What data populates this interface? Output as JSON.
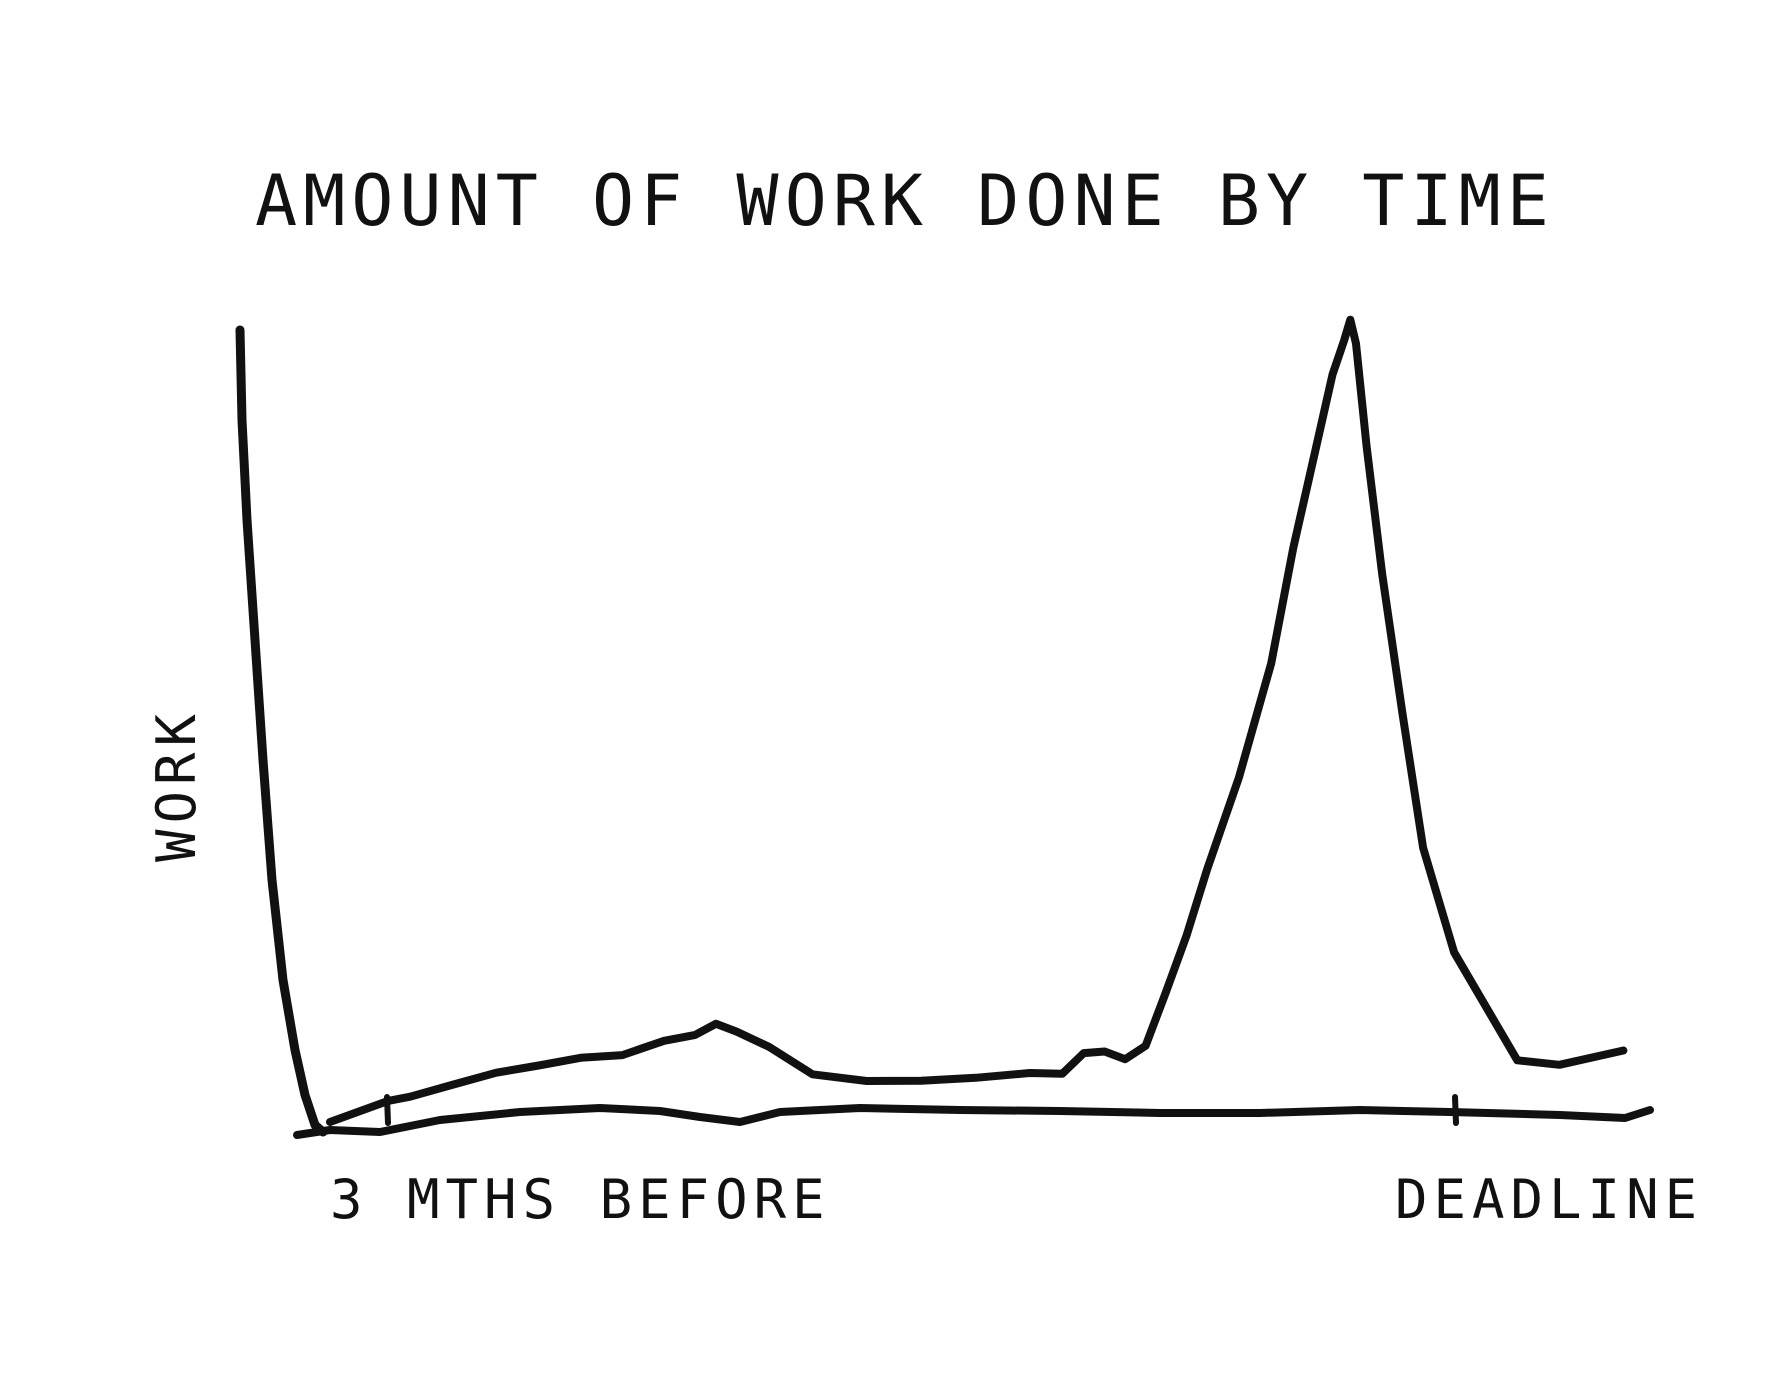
{
  "chart_data": {
    "type": "line",
    "title": "AMOUNT OF WORK DONE BY TIME",
    "ylabel": "WORK",
    "xlabel": "",
    "x_ticks": [
      "3 MTHS BEFORE",
      "DEADLINE"
    ],
    "grid": false,
    "legend": "none",
    "style": "hand-drawn sketch",
    "colors": {
      "ink": "#111111",
      "background": "#ffffff"
    },
    "series": [
      {
        "x": [
          0,
          0.02,
          0.06,
          0.1,
          0.14,
          0.18,
          0.22,
          0.26,
          0.29,
          0.31,
          0.33,
          0.36,
          0.4,
          0.45,
          0.5,
          0.55,
          0.6,
          0.63,
          0.65,
          0.67,
          0.69,
          0.71,
          0.73,
          0.75,
          0.77,
          0.8,
          0.83,
          0.85,
          0.87,
          0.885,
          0.895,
          0.9,
          0.905,
          0.915,
          0.93,
          0.95,
          0.97,
          1.0,
          1.06,
          1.1,
          1.16
        ],
        "y": [
          0.6,
          1.7,
          2.8,
          4.6,
          5.4,
          6.3,
          6.9,
          8.3,
          9.6,
          10.4,
          10.0,
          7.5,
          4.5,
          3.3,
          3.5,
          3.9,
          4.3,
          4.6,
          6.7,
          7.5,
          5.9,
          8.2,
          14.5,
          22.0,
          30.3,
          42.0,
          56.7,
          71.0,
          84.0,
          93.0,
          98.0,
          100.0,
          97.5,
          84.0,
          68.0,
          50.0,
          33.0,
          20.0,
          5.8,
          5.8,
          7.0
        ]
      }
    ]
  }
}
